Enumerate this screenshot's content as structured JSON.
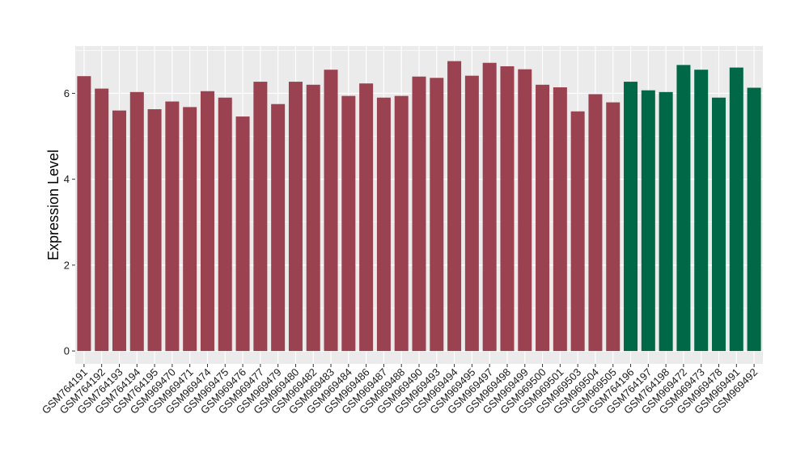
{
  "chart_data": {
    "type": "bar",
    "title": "",
    "xlabel": "",
    "ylabel": "Expression Level",
    "ylim": [
      -0.3,
      7.1
    ],
    "yticks": [
      0,
      2,
      4,
      6
    ],
    "grid": true,
    "legend": "none",
    "colors": {
      "group1": "#9B4250",
      "group2": "#006846",
      "panel": "#EBEBEB",
      "gridline": "#FFFFFF"
    },
    "categories": [
      "GSM764191",
      "GSM764192",
      "GSM764193",
      "GSM764194",
      "GSM764195",
      "GSM969470",
      "GSM969471",
      "GSM969474",
      "GSM969475",
      "GSM969476",
      "GSM969477",
      "GSM969479",
      "GSM969480",
      "GSM969482",
      "GSM969483",
      "GSM969484",
      "GSM969486",
      "GSM969487",
      "GSM969488",
      "GSM969490",
      "GSM969493",
      "GSM969494",
      "GSM969495",
      "GSM969497",
      "GSM969498",
      "GSM969499",
      "GSM969500",
      "GSM969501",
      "GSM969503",
      "GSM969504",
      "GSM969505",
      "GSM764196",
      "GSM764197",
      "GSM764198",
      "GSM969472",
      "GSM969473",
      "GSM969478",
      "GSM969491",
      "GSM969492"
    ],
    "values": [
      6.4,
      6.11,
      5.6,
      6.03,
      5.63,
      5.81,
      5.68,
      6.05,
      5.9,
      5.46,
      6.27,
      5.75,
      6.27,
      6.2,
      6.55,
      5.94,
      6.23,
      5.9,
      5.94,
      6.39,
      6.36,
      6.75,
      6.41,
      6.71,
      6.63,
      6.56,
      6.2,
      6.14,
      5.58,
      5.98,
      5.79,
      6.27,
      6.07,
      6.03,
      6.66,
      6.55,
      5.9,
      6.6,
      6.13
    ],
    "groups": [
      "group1",
      "group1",
      "group1",
      "group1",
      "group1",
      "group1",
      "group1",
      "group1",
      "group1",
      "group1",
      "group1",
      "group1",
      "group1",
      "group1",
      "group1",
      "group1",
      "group1",
      "group1",
      "group1",
      "group1",
      "group1",
      "group1",
      "group1",
      "group1",
      "group1",
      "group1",
      "group1",
      "group1",
      "group1",
      "group1",
      "group1",
      "group2",
      "group2",
      "group2",
      "group2",
      "group2",
      "group2",
      "group2",
      "group2"
    ]
  }
}
